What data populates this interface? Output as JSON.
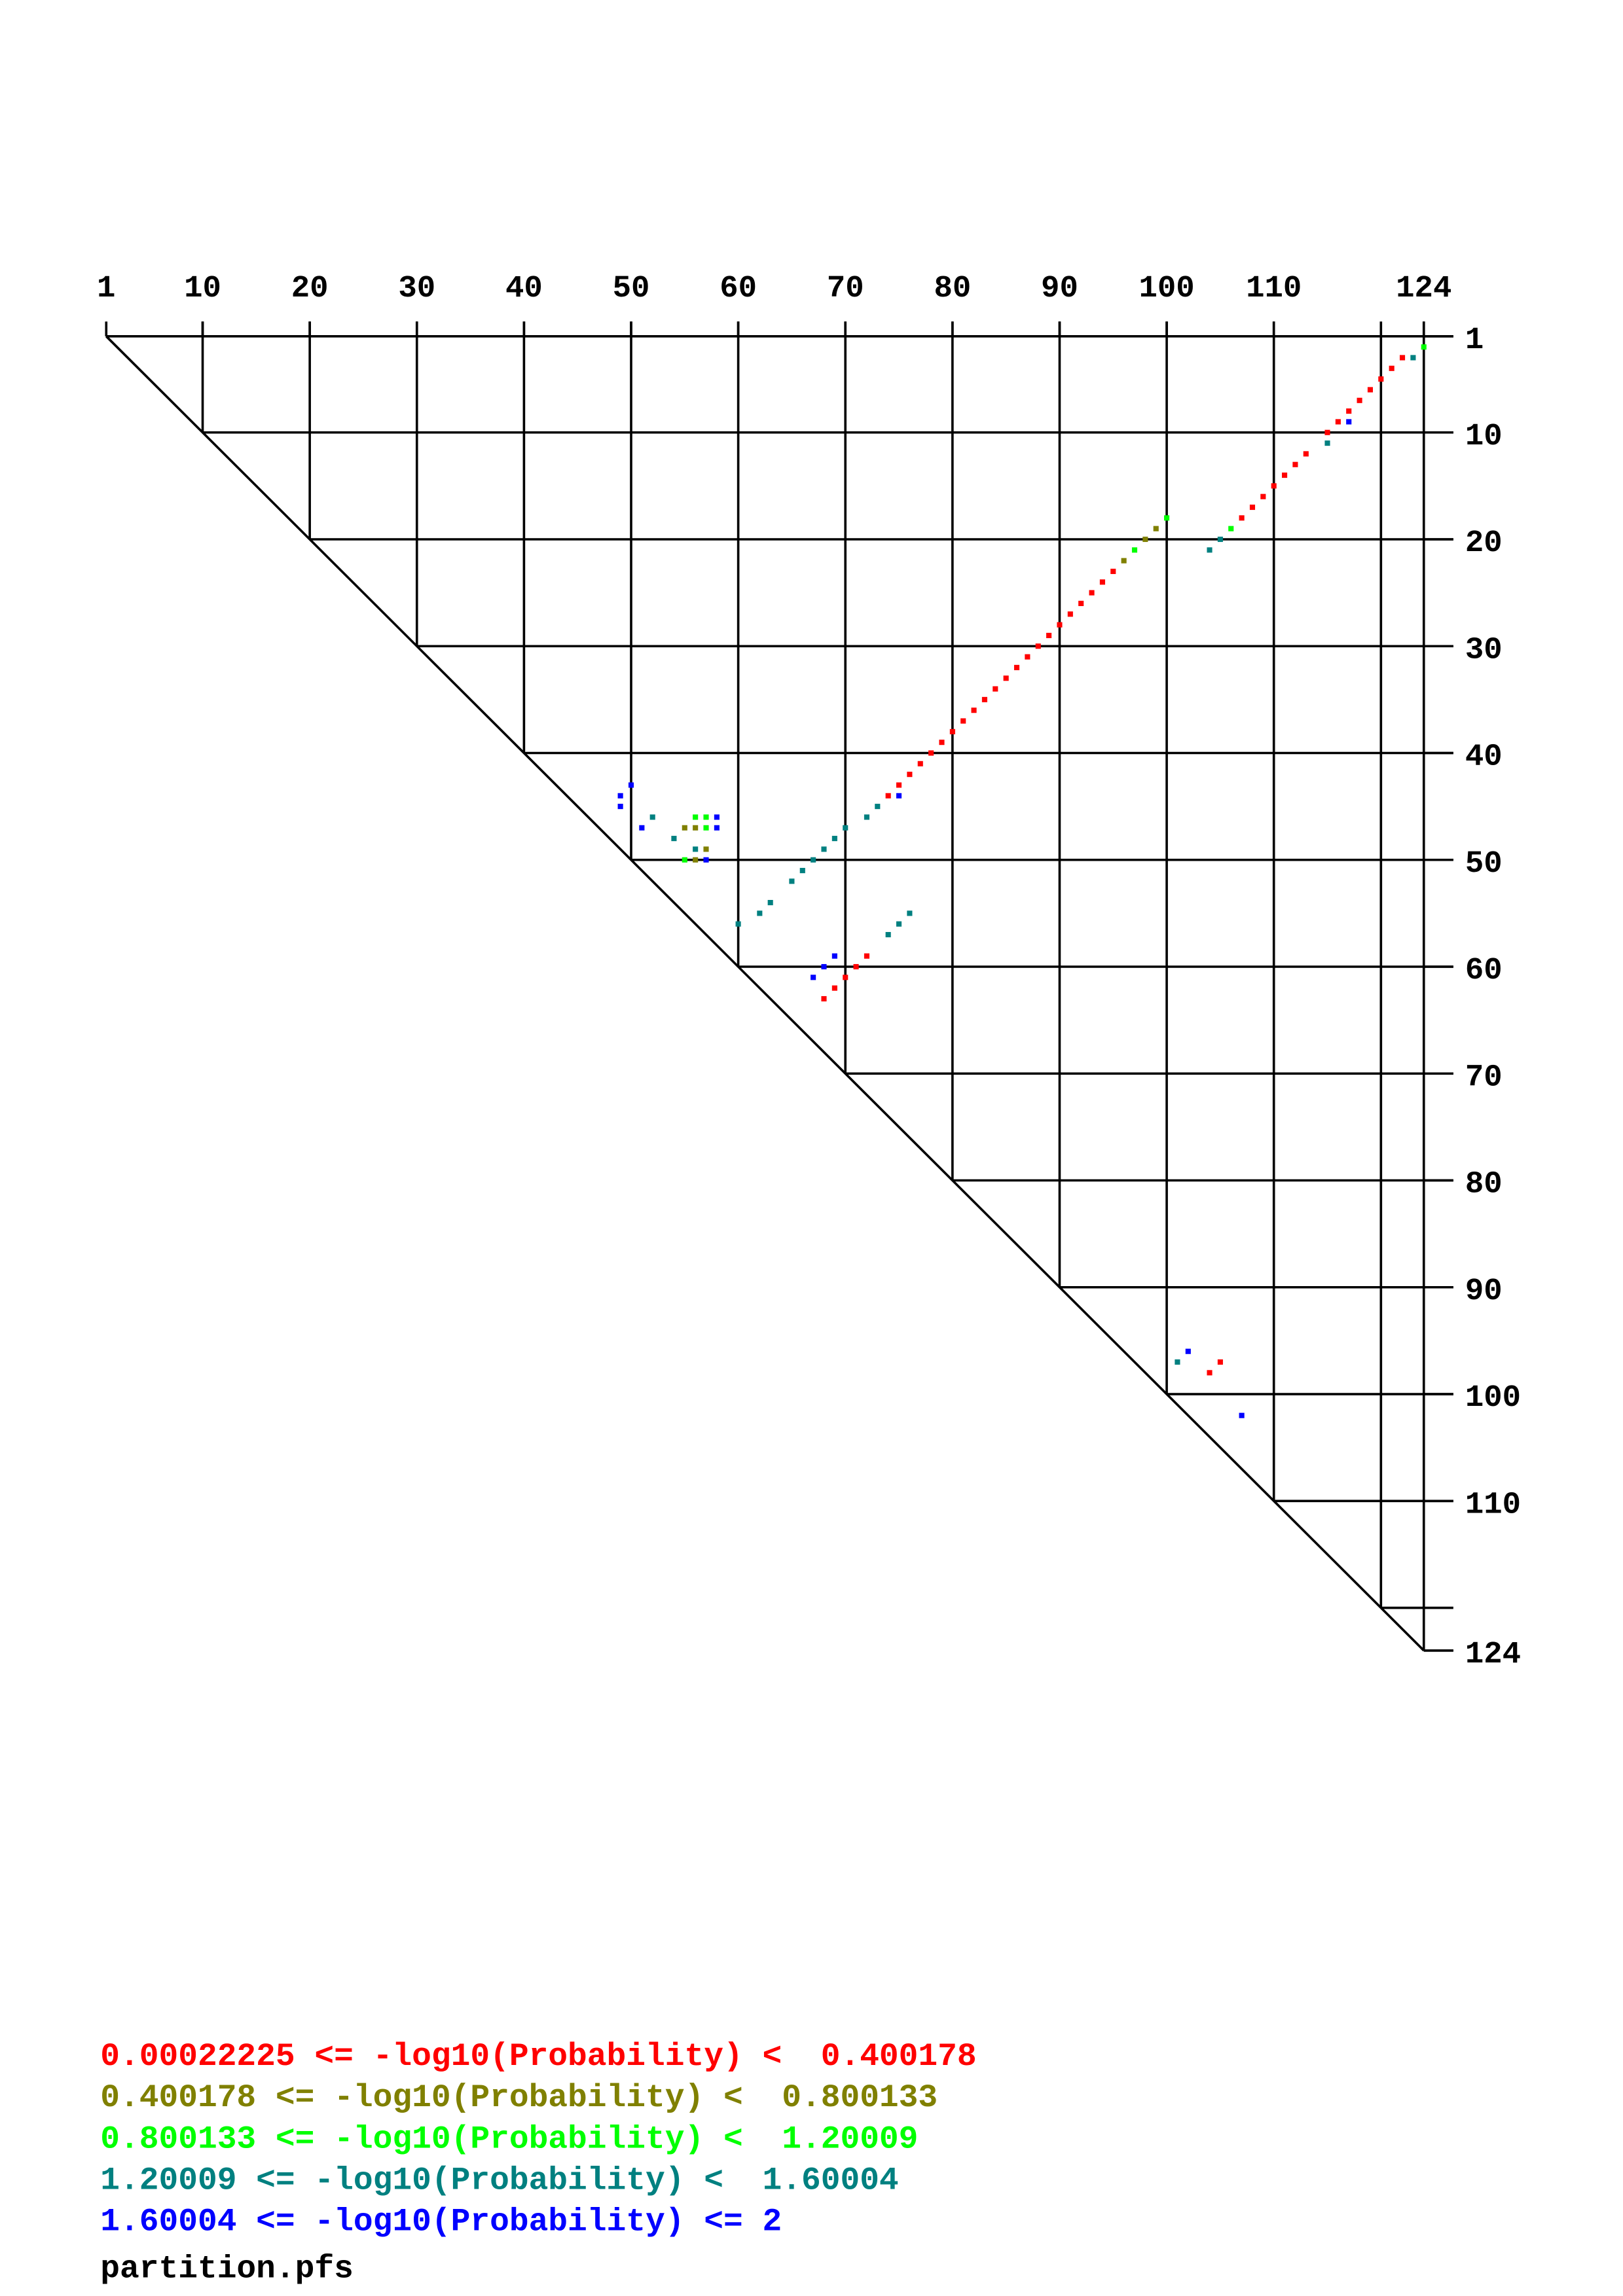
{
  "chart_data": {
    "type": "dotplot",
    "xlim": [
      1,
      124
    ],
    "ylim": [
      1,
      124
    ],
    "xticks": [
      1,
      10,
      20,
      30,
      40,
      50,
      60,
      70,
      80,
      90,
      100,
      110,
      124
    ],
    "yticks": [
      1,
      10,
      20,
      30,
      40,
      50,
      60,
      70,
      80,
      90,
      100,
      110,
      124
    ],
    "gridlines": [
      10,
      20,
      30,
      40,
      50,
      60,
      70,
      80,
      90,
      100,
      110,
      120,
      124
    ],
    "series": [
      {
        "name": "0.00022225 <= -log10(Probability) <  0.400178",
        "color": "#ff0000",
        "x": [
          122,
          121,
          120,
          119,
          118,
          117,
          116,
          115,
          113,
          112,
          111,
          110,
          109,
          108,
          107,
          95,
          94,
          93,
          92,
          91,
          90,
          89,
          88,
          87,
          86,
          85,
          84,
          83,
          82,
          81,
          80,
          79,
          78,
          77,
          76,
          75,
          74,
          72,
          71,
          70,
          69,
          68,
          105,
          104
        ],
        "y": [
          3,
          4,
          5,
          6,
          7,
          8,
          9,
          10,
          12,
          13,
          14,
          15,
          16,
          17,
          18,
          23,
          24,
          25,
          26,
          27,
          28,
          29,
          30,
          31,
          32,
          33,
          34,
          35,
          36,
          37,
          38,
          39,
          40,
          41,
          42,
          43,
          44,
          59,
          60,
          61,
          62,
          63,
          97,
          98
        ]
      },
      {
        "name": "0.400178 <= -log10(Probability) <  0.800133",
        "color": "#808000",
        "x": [
          99,
          98,
          96,
          55,
          56,
          57,
          56
        ],
        "y": [
          19,
          20,
          22,
          47,
          47,
          49,
          50
        ]
      },
      {
        "name": "0.800133 <= -log10(Probability) <  1.20009",
        "color": "#00ff00",
        "x": [
          124,
          106,
          100,
          97,
          56,
          57,
          57,
          55
        ],
        "y": [
          2,
          19,
          18,
          21,
          46,
          46,
          47,
          50
        ]
      },
      {
        "name": "1.20009 <= -log10(Probability) <  1.60004",
        "color": "#008080",
        "x": [
          123,
          115,
          105,
          104,
          73,
          72,
          70,
          69,
          68,
          67,
          66,
          65,
          63,
          62,
          60,
          52,
          54,
          56,
          76,
          75,
          74,
          101
        ],
        "y": [
          3,
          11,
          20,
          21,
          45,
          46,
          47,
          48,
          49,
          50,
          51,
          52,
          54,
          55,
          56,
          46,
          48,
          49,
          55,
          56,
          57,
          97
        ]
      },
      {
        "name": "1.60004 <= -log10(Probability) <= 2",
        "color": "#0000ff",
        "x": [
          117,
          75,
          50,
          49,
          49,
          51,
          58,
          58,
          57,
          69,
          68,
          67,
          102,
          107
        ],
        "y": [
          9,
          44,
          43,
          44,
          45,
          47,
          46,
          47,
          50,
          59,
          60,
          61,
          96,
          102
        ]
      }
    ],
    "footer": "partition.pfs"
  }
}
